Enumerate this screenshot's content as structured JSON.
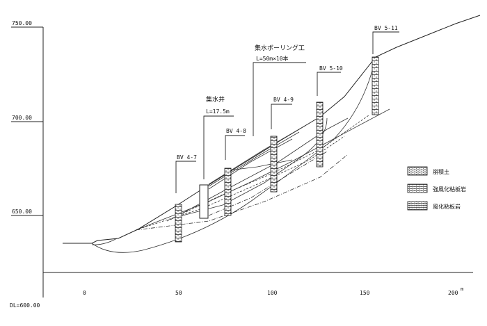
{
  "y_axis": {
    "ticks": [
      {
        "label": "750.00"
      },
      {
        "label": "700.00"
      },
      {
        "label": "650.00"
      }
    ],
    "datum_label": "DL=600.00"
  },
  "x_axis": {
    "ticks": [
      {
        "label": "0"
      },
      {
        "label": "50"
      },
      {
        "label": "100"
      },
      {
        "label": "150"
      },
      {
        "label": "200"
      }
    ],
    "unit_superscript": "m"
  },
  "boreholes": [
    {
      "id": "BV 4-7"
    },
    {
      "id": "BV 4-8"
    },
    {
      "id": "BV 4-9"
    },
    {
      "id": "BV 5-10"
    },
    {
      "id": "BV 5-11"
    }
  ],
  "structures": {
    "well_name": "集水井",
    "well_length": "L=17.5m",
    "boring_name": "集水ボーリング工",
    "boring_spec": "L=50m×10本"
  },
  "legend": [
    {
      "label": "崩積土"
    },
    {
      "label": "強風化粘板岩"
    },
    {
      "label": "風化粘板岩"
    }
  ]
}
